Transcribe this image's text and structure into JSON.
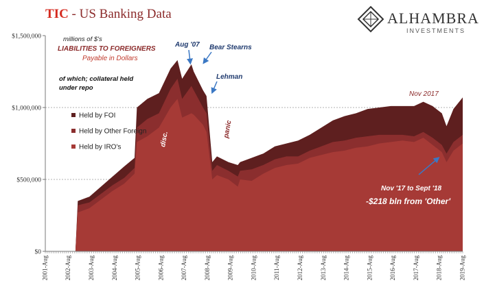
{
  "header": {
    "title_prefix": "TIC",
    "title_rest": " - US Banking Data",
    "logo_name": "ALHAMBRA",
    "logo_sub": "INVESTMENTS"
  },
  "colors": {
    "foi": "#5e1f1f",
    "other_foreign": "#8b2e2e",
    "iro": "#a63a36",
    "title_red": "#d52a1f",
    "annotation_blue": "#1f3a6e",
    "annotation_red": "#8b2a2a",
    "arrow_blue": "#3b78c4"
  },
  "chart_data": {
    "type": "area",
    "stacked": true,
    "ylim": [
      0,
      1500000
    ],
    "yticks": [
      0,
      500000,
      1000000,
      1500000
    ],
    "ytick_labels": [
      "$0",
      "$500,000",
      "$1,000,000",
      "$1,500,000"
    ],
    "gridlines_at": [
      500000,
      1000000
    ],
    "x_ticks": [
      "2001-Aug",
      "2002-Aug",
      "2003-Aug",
      "2004-Aug",
      "2005-Aug",
      "2006-Aug",
      "2007-Aug",
      "2008-Aug",
      "2009-Aug",
      "2010-Aug",
      "2011-Aug",
      "2012-Aug",
      "2013-Aug",
      "2014-Aug",
      "2015-Aug",
      "2016-Aug",
      "2017-Aug",
      "2018-Aug",
      "2019-Aug"
    ],
    "x_range": [
      2001.6,
      2019.6
    ],
    "legend_position": "left",
    "legend": [
      "Held by FOI",
      "Held by Other Foreign",
      "Held by IRO's"
    ],
    "series": [
      {
        "name": "Held by IRO's",
        "points": [
          [
            2002.9,
            0
          ],
          [
            2003.0,
            270000
          ],
          [
            2003.5,
            300000
          ],
          [
            2004.0,
            360000
          ],
          [
            2004.5,
            420000
          ],
          [
            2005.0,
            470000
          ],
          [
            2005.45,
            540000
          ],
          [
            2005.55,
            760000
          ],
          [
            2006.0,
            800000
          ],
          [
            2006.5,
            860000
          ],
          [
            2007.0,
            1000000
          ],
          [
            2007.3,
            1060000
          ],
          [
            2007.5,
            930000
          ],
          [
            2007.9,
            960000
          ],
          [
            2008.0,
            950000
          ],
          [
            2008.4,
            880000
          ],
          [
            2008.55,
            830000
          ],
          [
            2008.8,
            500000
          ],
          [
            2009.0,
            530000
          ],
          [
            2009.5,
            500000
          ],
          [
            2009.9,
            450000
          ],
          [
            2010.0,
            500000
          ],
          [
            2010.5,
            490000
          ],
          [
            2011.0,
            540000
          ],
          [
            2011.5,
            580000
          ],
          [
            2012.0,
            600000
          ],
          [
            2012.5,
            610000
          ],
          [
            2013.0,
            650000
          ],
          [
            2013.5,
            670000
          ],
          [
            2014.0,
            690000
          ],
          [
            2014.5,
            700000
          ],
          [
            2015.0,
            720000
          ],
          [
            2015.5,
            730000
          ],
          [
            2016.0,
            750000
          ],
          [
            2016.5,
            760000
          ],
          [
            2017.0,
            770000
          ],
          [
            2017.5,
            760000
          ],
          [
            2017.9,
            790000
          ],
          [
            2018.3,
            740000
          ],
          [
            2018.7,
            690000
          ],
          [
            2018.9,
            620000
          ],
          [
            2019.2,
            700000
          ],
          [
            2019.6,
            750000
          ]
        ]
      },
      {
        "name": "Held by Other Foreign",
        "points": [
          [
            2002.9,
            0
          ],
          [
            2003.0,
            320000
          ],
          [
            2003.5,
            340000
          ],
          [
            2004.0,
            400000
          ],
          [
            2004.5,
            460000
          ],
          [
            2005.0,
            510000
          ],
          [
            2005.45,
            580000
          ],
          [
            2005.55,
            860000
          ],
          [
            2006.0,
            920000
          ],
          [
            2006.5,
            960000
          ],
          [
            2007.0,
            1130000
          ],
          [
            2007.3,
            1200000
          ],
          [
            2007.5,
            1060000
          ],
          [
            2007.9,
            1150000
          ],
          [
            2008.0,
            1120000
          ],
          [
            2008.4,
            1000000
          ],
          [
            2008.55,
            960000
          ],
          [
            2008.8,
            560000
          ],
          [
            2009.0,
            600000
          ],
          [
            2009.5,
            560000
          ],
          [
            2009.9,
            520000
          ],
          [
            2010.0,
            560000
          ],
          [
            2010.5,
            570000
          ],
          [
            2011.0,
            600000
          ],
          [
            2011.5,
            640000
          ],
          [
            2012.0,
            660000
          ],
          [
            2012.5,
            660000
          ],
          [
            2013.0,
            700000
          ],
          [
            2013.5,
            730000
          ],
          [
            2014.0,
            760000
          ],
          [
            2014.5,
            770000
          ],
          [
            2015.0,
            790000
          ],
          [
            2015.5,
            800000
          ],
          [
            2016.0,
            810000
          ],
          [
            2016.5,
            810000
          ],
          [
            2017.0,
            810000
          ],
          [
            2017.5,
            800000
          ],
          [
            2017.9,
            830000
          ],
          [
            2018.3,
            790000
          ],
          [
            2018.7,
            740000
          ],
          [
            2018.9,
            680000
          ],
          [
            2019.2,
            760000
          ],
          [
            2019.6,
            810000
          ]
        ]
      },
      {
        "name": "Held by FOI",
        "points": [
          [
            2002.9,
            0
          ],
          [
            2003.0,
            350000
          ],
          [
            2003.5,
            380000
          ],
          [
            2004.0,
            450000
          ],
          [
            2004.5,
            520000
          ],
          [
            2005.0,
            590000
          ],
          [
            2005.45,
            650000
          ],
          [
            2005.55,
            1000000
          ],
          [
            2006.0,
            1060000
          ],
          [
            2006.5,
            1100000
          ],
          [
            2007.0,
            1270000
          ],
          [
            2007.3,
            1330000
          ],
          [
            2007.5,
            1200000
          ],
          [
            2007.9,
            1300000
          ],
          [
            2008.0,
            1250000
          ],
          [
            2008.4,
            1120000
          ],
          [
            2008.55,
            1080000
          ],
          [
            2008.8,
            620000
          ],
          [
            2009.0,
            660000
          ],
          [
            2009.5,
            620000
          ],
          [
            2009.9,
            600000
          ],
          [
            2010.0,
            620000
          ],
          [
            2010.5,
            650000
          ],
          [
            2011.0,
            680000
          ],
          [
            2011.5,
            730000
          ],
          [
            2012.0,
            750000
          ],
          [
            2012.5,
            770000
          ],
          [
            2013.0,
            810000
          ],
          [
            2013.5,
            860000
          ],
          [
            2014.0,
            910000
          ],
          [
            2014.5,
            940000
          ],
          [
            2015.0,
            960000
          ],
          [
            2015.5,
            990000
          ],
          [
            2016.0,
            1000000
          ],
          [
            2016.5,
            1010000
          ],
          [
            2017.0,
            1010000
          ],
          [
            2017.5,
            1010000
          ],
          [
            2017.9,
            1040000
          ],
          [
            2018.3,
            1010000
          ],
          [
            2018.7,
            960000
          ],
          [
            2018.9,
            870000
          ],
          [
            2019.2,
            990000
          ],
          [
            2019.6,
            1070000
          ]
        ]
      }
    ],
    "annotations": {
      "units": "millions of $'s",
      "liabilities": "LIABILITIES TO FOREIGNERS",
      "payable": "Payable in Dollars",
      "collateral_line1": "of which; collateral held",
      "collateral_line2": "under repo",
      "aug07": "Aug '07",
      "bear": "Bear Stearns",
      "lehman": "Lehman",
      "disc": "disc.",
      "panic": "panic",
      "nov2017": "Nov 2017",
      "nov17_sept18": "Nov '17 to Sept '18",
      "drop": "-$218 bln from 'Other'"
    }
  }
}
